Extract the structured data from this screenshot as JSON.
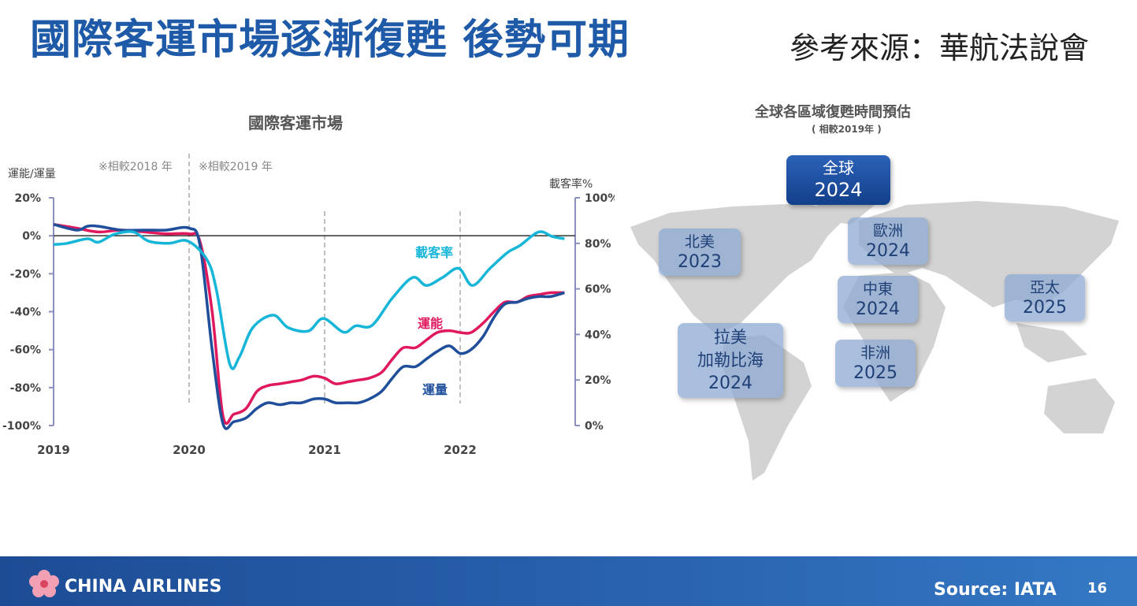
{
  "title": "國際客運市場逐漸復甦 後勢可期",
  "source_top": "參考來源：華航法說會",
  "chart_data": {
    "type": "line",
    "title": "國際客運市場",
    "ylabel_left": "運能/運量",
    "ylabel_right": "載客率%",
    "annotations": [
      "※相較2018 年",
      "※相較2019 年"
    ],
    "x_ticks": [
      "2019",
      "2020",
      "2021",
      "2022"
    ],
    "ylim_left": [
      -100,
      20
    ],
    "yticks_left": [
      "20%",
      "0%",
      "-20%",
      "-40%",
      "-60%",
      "-80%",
      "-100%"
    ],
    "ylim_right": [
      0,
      100
    ],
    "yticks_right": [
      "100%",
      "80%",
      "60%",
      "40%",
      "20%",
      "0%"
    ],
    "series": [
      {
        "name": "運能",
        "axis": "left",
        "color": "#e0195f",
        "x": [
          2019.0,
          2019.17,
          2019.33,
          2019.5,
          2019.67,
          2019.83,
          2020.0,
          2020.08,
          2020.17,
          2020.25,
          2020.33,
          2020.42,
          2020.5,
          2020.58,
          2020.67,
          2020.75,
          2020.83,
          2020.92,
          2021.0,
          2021.08,
          2021.17,
          2021.25,
          2021.33,
          2021.42,
          2021.5,
          2021.58,
          2021.67,
          2021.75,
          2021.83,
          2021.92,
          2022.0,
          2022.08,
          2022.17,
          2022.25,
          2022.33,
          2022.42,
          2022.5,
          2022.58,
          2022.67,
          2022.77
        ],
        "y": [
          6,
          4,
          2,
          3,
          2,
          1,
          1,
          -3,
          -40,
          -95,
          -94,
          -91,
          -82,
          -79,
          -78,
          -77,
          -76,
          -74,
          -75,
          -78,
          -77,
          -76,
          -75,
          -72,
          -65,
          -59,
          -59,
          -55,
          -51,
          -50,
          -51,
          -51,
          -46,
          -40,
          -35,
          -35,
          -32,
          -31,
          -30,
          -30
        ]
      },
      {
        "name": "運量",
        "axis": "left",
        "color": "#1f4e9b",
        "x": [
          2019.0,
          2019.17,
          2019.25,
          2019.33,
          2019.5,
          2019.67,
          2019.83,
          2020.0,
          2020.08,
          2020.17,
          2020.25,
          2020.33,
          2020.42,
          2020.5,
          2020.58,
          2020.67,
          2020.75,
          2020.83,
          2020.92,
          2021.0,
          2021.08,
          2021.17,
          2021.25,
          2021.33,
          2021.42,
          2021.5,
          2021.58,
          2021.67,
          2021.75,
          2021.83,
          2021.92,
          2022.0,
          2022.08,
          2022.17,
          2022.25,
          2022.33,
          2022.42,
          2022.5,
          2022.58,
          2022.67,
          2022.77
        ],
        "y": [
          6,
          3,
          5,
          5,
          3,
          3,
          3,
          4,
          -5,
          -60,
          -99,
          -98,
          -96,
          -91,
          -88,
          -89,
          -88,
          -88,
          -86,
          -86,
          -88,
          -88,
          -88,
          -86,
          -82,
          -75,
          -69,
          -69,
          -65,
          -61,
          -58,
          -62,
          -60,
          -53,
          -43,
          -36,
          -35,
          -33,
          -32,
          -32,
          -30
        ]
      },
      {
        "name": "載客率",
        "axis": "right",
        "color": "#17b6d9",
        "x": [
          2019.0,
          2019.1,
          2019.25,
          2019.33,
          2019.45,
          2019.59,
          2019.7,
          2019.85,
          2019.99,
          2020.13,
          2020.2,
          2020.3,
          2020.37,
          2020.47,
          2020.62,
          2020.73,
          2020.88,
          2020.99,
          2021.14,
          2021.23,
          2021.35,
          2021.5,
          2021.65,
          2021.75,
          2021.87,
          2021.99,
          2022.09,
          2022.22,
          2022.35,
          2022.44,
          2022.58,
          2022.68,
          2022.77
        ],
        "y": [
          79.5,
          80,
          82,
          80.5,
          84,
          85,
          81,
          80,
          81,
          73,
          60,
          27,
          30,
          43,
          48.5,
          43,
          41.5,
          47,
          41,
          43.8,
          44,
          56,
          65,
          61.5,
          65,
          69,
          61.5,
          69,
          76,
          79,
          85,
          83,
          82
        ]
      }
    ]
  },
  "map": {
    "title": "全球各區域復甦時間預估",
    "subtitle": "( 相較2019年 )",
    "global": {
      "label": "全球",
      "year": "2024"
    },
    "regions": [
      {
        "label": "北美",
        "year": "2023"
      },
      {
        "label": "歐洲",
        "year": "2024"
      },
      {
        "label": "中東",
        "year": "2024"
      },
      {
        "label": "亞太",
        "year": "2025"
      },
      {
        "label": "拉美\n加勒比海",
        "label_1": "拉美",
        "label_2": "加勒比海",
        "year": "2024"
      },
      {
        "label": "非洲",
        "year": "2025"
      }
    ]
  },
  "footer": {
    "logo": "CHINA AIRLINES",
    "source": "Source: IATA",
    "page": "16"
  }
}
